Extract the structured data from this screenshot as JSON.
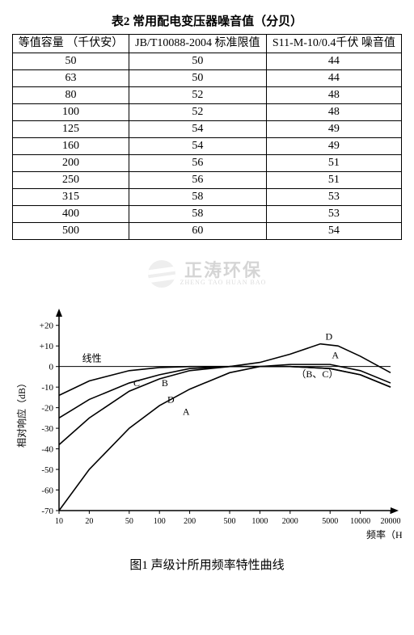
{
  "table": {
    "title": "表2 常用配电变压器噪音值（分贝）",
    "columns": [
      "等值容量\n（千伏安）",
      "JB/T10088-2004\n标准限值",
      "S11-M-10/0.4千伏\n噪音值"
    ],
    "rows": [
      [
        "50",
        "50",
        "44"
      ],
      [
        "63",
        "50",
        "44"
      ],
      [
        "80",
        "52",
        "48"
      ],
      [
        "100",
        "52",
        "48"
      ],
      [
        "125",
        "54",
        "49"
      ],
      [
        "160",
        "54",
        "49"
      ],
      [
        "200",
        "56",
        "51"
      ],
      [
        "250",
        "56",
        "51"
      ],
      [
        "315",
        "58",
        "53"
      ],
      [
        "400",
        "58",
        "53"
      ],
      [
        "500",
        "60",
        "54"
      ]
    ]
  },
  "watermark": {
    "main": "正涛环保",
    "sub": "ZHENG TAO HUAN BAO"
  },
  "chart": {
    "type": "line",
    "title": "图1 声级计所用频率特性曲线",
    "xlabel": "频率（Hz）",
    "ylabel": "相对响应（dB）",
    "ylim": [
      -70,
      25
    ],
    "ytick_step": 10,
    "yticks_labels": [
      "+20",
      "+10",
      "0",
      "-10",
      "-20",
      "-30",
      "-40",
      "-50",
      "-60",
      "-70"
    ],
    "xscale": "log",
    "xlim": [
      10,
      20000
    ],
    "xticks": [
      10,
      20,
      50,
      100,
      200,
      500,
      1000,
      2000,
      5000,
      10000,
      20000
    ],
    "xticks_labels": [
      "10",
      "20",
      "50",
      "100",
      "200",
      "500",
      "1000",
      "2000",
      "5000",
      "10000",
      "20000"
    ],
    "annotation_linear": "线性",
    "annotation_bc": "（B、C）",
    "curve_labels_left": {
      "A": "A",
      "B": "B",
      "C": "C",
      "D": "D"
    },
    "curve_labels_right": {
      "A": "A",
      "D": "D"
    },
    "line_color": "#000000",
    "axis_color": "#000000",
    "background_color": "#ffffff",
    "label_fontsize": 12,
    "tick_fontsize": 11,
    "line_width": 1.6,
    "series": {
      "A": [
        [
          10,
          -70
        ],
        [
          20,
          -50
        ],
        [
          50,
          -30
        ],
        [
          100,
          -19
        ],
        [
          200,
          -11
        ],
        [
          500,
          -3
        ],
        [
          1000,
          0
        ],
        [
          2000,
          1
        ],
        [
          5000,
          1
        ],
        [
          10000,
          -2
        ],
        [
          20000,
          -8
        ]
      ],
      "B": [
        [
          10,
          -38
        ],
        [
          20,
          -25
        ],
        [
          50,
          -12
        ],
        [
          100,
          -6
        ],
        [
          200,
          -2
        ],
        [
          500,
          0
        ],
        [
          1000,
          0
        ],
        [
          2000,
          0
        ],
        [
          5000,
          -1
        ],
        [
          10000,
          -4
        ],
        [
          20000,
          -10
        ]
      ],
      "C": [
        [
          10,
          -14
        ],
        [
          20,
          -7
        ],
        [
          50,
          -2
        ],
        [
          100,
          -0.5
        ],
        [
          200,
          0
        ],
        [
          500,
          0
        ],
        [
          1000,
          0
        ],
        [
          2000,
          0
        ],
        [
          5000,
          -1
        ],
        [
          10000,
          -4
        ],
        [
          20000,
          -10
        ]
      ],
      "D": [
        [
          10,
          -25
        ],
        [
          20,
          -16
        ],
        [
          50,
          -8
        ],
        [
          100,
          -4
        ],
        [
          200,
          -1
        ],
        [
          500,
          0
        ],
        [
          1000,
          2
        ],
        [
          2000,
          6
        ],
        [
          4000,
          11
        ],
        [
          6000,
          10
        ],
        [
          10000,
          5
        ],
        [
          20000,
          -3
        ]
      ]
    }
  }
}
